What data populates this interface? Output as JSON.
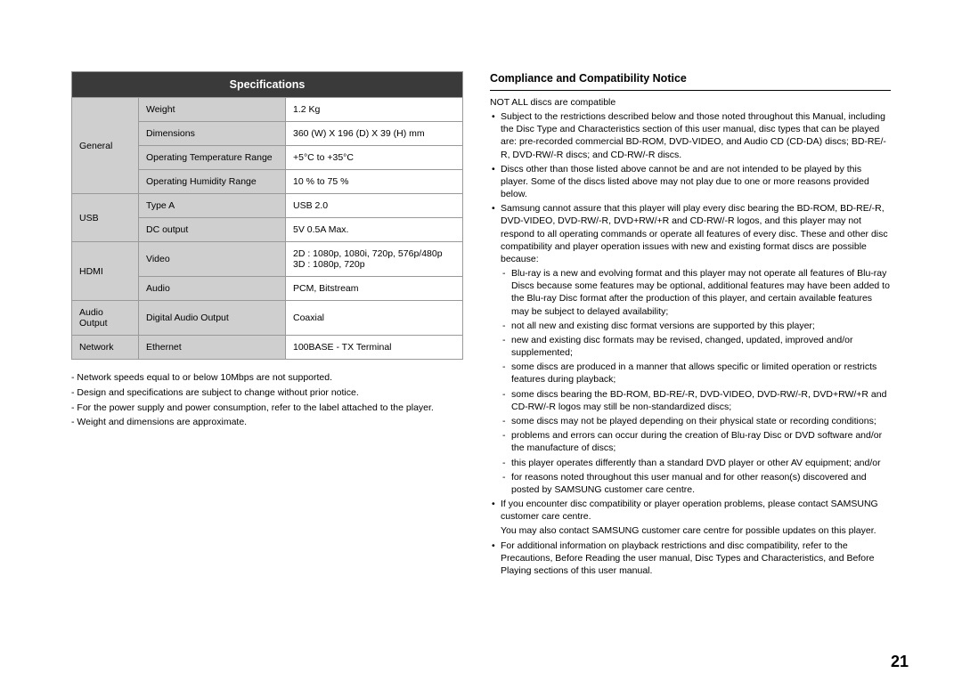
{
  "page_number": "21",
  "left": {
    "header": "Specifications",
    "groups": [
      {
        "category": "General",
        "rows": [
          {
            "label": "Weight",
            "value": "1.2 Kg"
          },
          {
            "label": "Dimensions",
            "value": "360 (W) X 196 (D) X 39 (H) mm"
          },
          {
            "label": "Operating Temperature Range",
            "value": "+5°C to +35°C"
          },
          {
            "label": "Operating Humidity Range",
            "value": "10 % to 75 %"
          }
        ]
      },
      {
        "category": "USB",
        "rows": [
          {
            "label": "Type A",
            "value": "USB 2.0"
          },
          {
            "label": "DC output",
            "value": "5V 0.5A Max."
          }
        ]
      },
      {
        "category": "HDMI",
        "rows": [
          {
            "label": "Video",
            "value": "2D : 1080p, 1080i, 720p, 576p/480p\n3D : 1080p, 720p"
          },
          {
            "label": "Audio",
            "value": "PCM, Bitstream"
          }
        ]
      },
      {
        "category": "Audio Output",
        "rows": [
          {
            "label": "Digital Audio Output",
            "value": "Coaxial"
          }
        ]
      },
      {
        "category": "Network",
        "rows": [
          {
            "label": "Ethernet",
            "value": "100BASE - TX Terminal"
          }
        ]
      }
    ],
    "notes": [
      "Network speeds equal to or below 10Mbps are not supported.",
      "Design and specifications are subject to change without prior notice.",
      "For the power supply and power consumption, refer to the label attached to the player.",
      "Weight and dimensions are approximate."
    ]
  },
  "right": {
    "title": "Compliance and Compatibility Notice",
    "intro": "NOT ALL discs are compatible",
    "bullets_top": [
      "Subject to the restrictions described below and those noted throughout this Manual, including the Disc Type and Characteristics section of this user manual, disc types that can be played are: pre-recorded commercial BD-ROM, DVD-VIDEO, and Audio CD (CD-DA) discs; BD-RE/-R, DVD-RW/-R discs; and CD-RW/-R discs.",
      "Discs other than those listed above cannot be and are not intended to be played by this player. Some of the discs listed above may not play due to one or more reasons provided below.",
      "Samsung cannot assure that this player will play every disc bearing the BD-ROM, BD-RE/-R, DVD-VIDEO, DVD-RW/-R, DVD+RW/+R and CD-RW/-R logos, and this player may not respond to all operating commands or operate all features of every disc. These and other disc compatibility and player operation issues with new and existing format discs are possible because:"
    ],
    "dashes": [
      "Blu-ray is a new and evolving format and this player may not operate all features of Blu-ray Discs because some features may be optional, additional features may have been added to the Blu-ray Disc format after the production of this player, and certain available features may be subject to delayed availability;",
      "not all new and existing disc format versions are supported by this player;",
      "new and existing disc formats may be revised, changed, updated, improved and/or supplemented;",
      "some discs are produced in a manner that allows specific or limited operation or restricts features during playback;",
      "some discs bearing the BD-ROM, BD-RE/-R, DVD-VIDEO, DVD-RW/-R, DVD+RW/+R and CD-RW/-R logos may still be non-standardized discs;",
      "some discs may not be played depending on their physical state or recording conditions;",
      "problems and errors can occur during the creation of Blu-ray Disc or DVD software and/or the manufacture of discs;",
      "this player operates differently than a standard DVD player or other AV equipment; and/or",
      "for reasons noted throughout this user manual and for other reason(s) discovered and posted by SAMSUNG customer care centre."
    ],
    "bullets_bottom": [
      "If you encounter disc compatibility or player operation problems, please contact SAMSUNG customer care centre."
    ],
    "plain_after": "You may also contact SAMSUNG customer care centre for possible updates on this player.",
    "bullets_last": [
      "For additional information on playback restrictions and disc compatibility, refer to the Precautions, Before Reading the user manual, Disc Types and Characteristics, and Before Playing sections of this user manual."
    ]
  }
}
